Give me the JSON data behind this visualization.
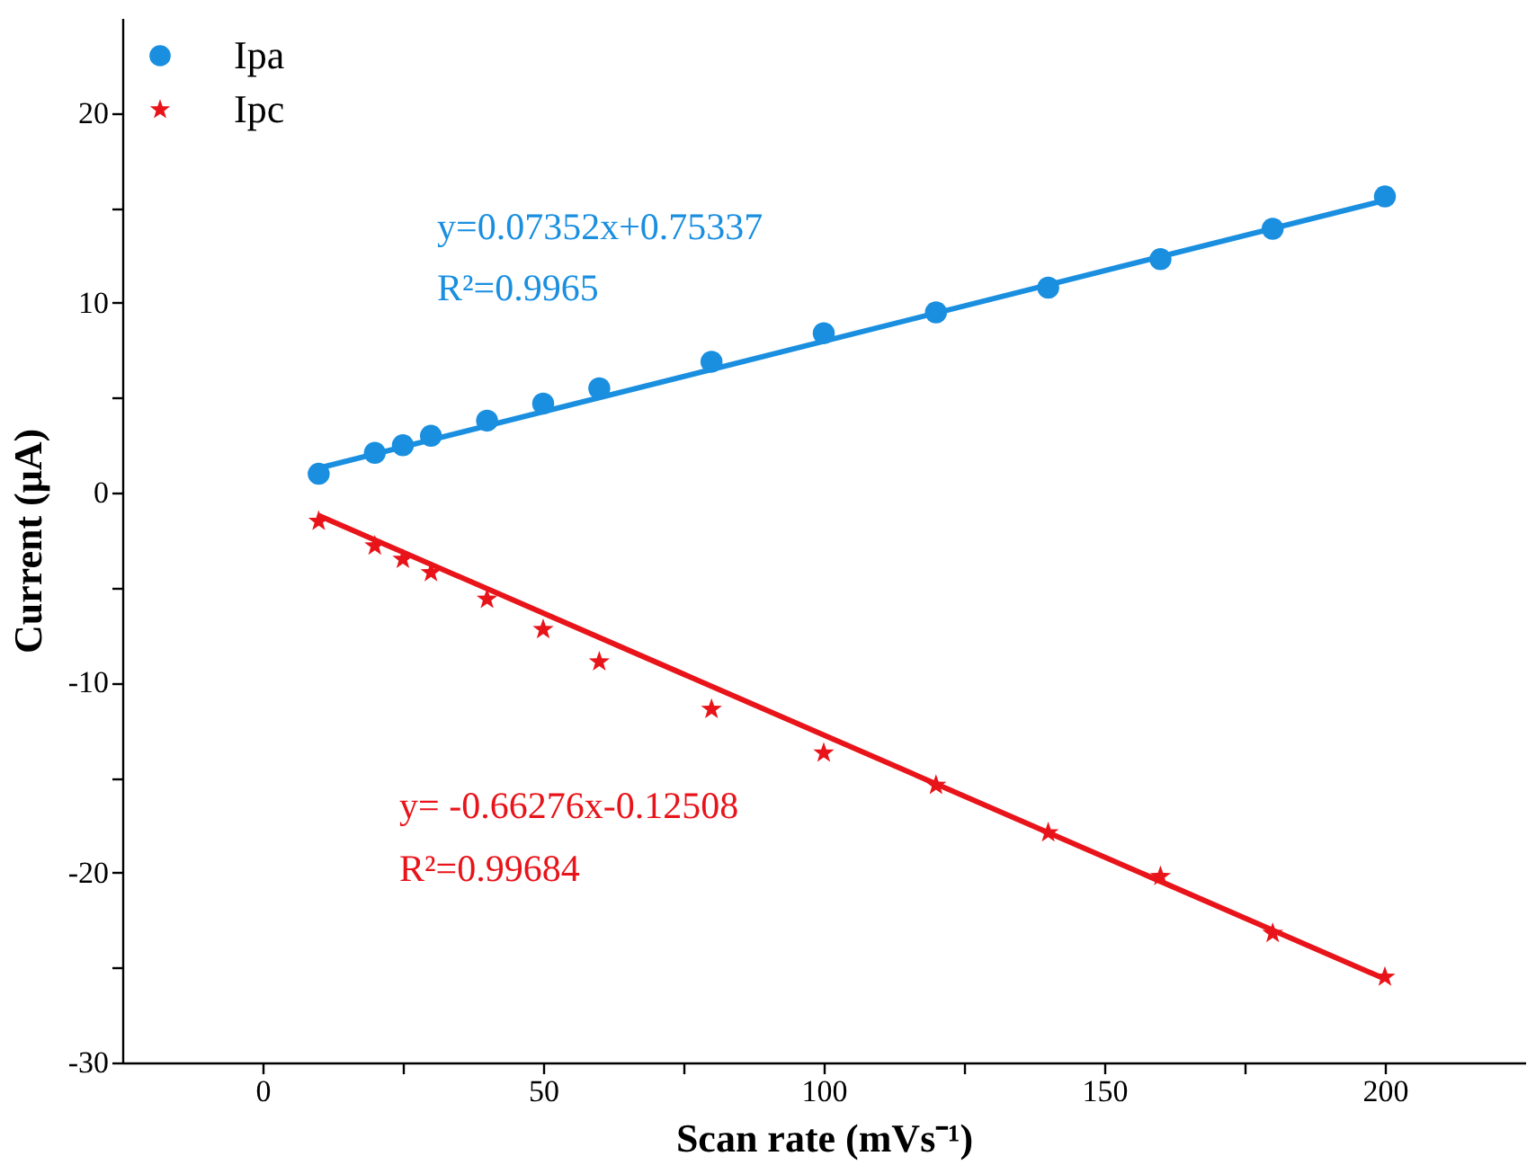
{
  "chart_data": {
    "type": "scatter",
    "xlabel": "Scan rate (mVs⁻¹)",
    "ylabel": "Current (μA)",
    "xlim": [
      -25,
      225
    ],
    "ylim": [
      -30,
      25
    ],
    "xticks": [
      0,
      50,
      100,
      150,
      200,
      {
        "value": 25,
        "label": null
      },
      {
        "value": 75,
        "label": null
      },
      {
        "value": 125,
        "label": null
      },
      {
        "value": 175,
        "label": null
      }
    ],
    "yticks": [
      -30,
      -20,
      -10,
      0,
      10,
      20,
      {
        "value": -25,
        "label": null
      },
      {
        "value": -15,
        "label": null
      },
      {
        "value": -5,
        "label": null
      },
      {
        "value": 5,
        "label": null
      },
      {
        "value": 15,
        "label": null
      }
    ],
    "grid": false,
    "legend": "top left",
    "series": [
      {
        "name": "Ipa",
        "marker": "circle",
        "color": "#1a8fe0",
        "x": [
          10,
          20,
          25,
          30,
          40,
          50,
          60,
          80,
          100,
          120,
          140,
          160,
          180,
          200
        ],
        "values": [
          1.0,
          2.1,
          2.5,
          3.0,
          3.8,
          4.7,
          5.5,
          6.9,
          8.4,
          9.5,
          10.8,
          12.3,
          13.9,
          15.6
        ]
      },
      {
        "name": "Ipc",
        "marker": "star",
        "color": "#e8141a",
        "x": [
          10,
          20,
          25,
          30,
          40,
          50,
          60,
          80,
          100,
          120,
          140,
          160,
          180,
          200
        ],
        "values": [
          -1.5,
          -2.8,
          -3.5,
          -4.2,
          -5.6,
          -7.2,
          -8.9,
          -11.4,
          -13.7,
          -15.4,
          -17.9,
          -20.2,
          -23.2,
          -25.5
        ]
      },
      {
        "type": "line",
        "color": "#1a8fe0",
        "x": [
          10,
          200
        ],
        "values": [
          1.3,
          15.4
        ]
      },
      {
        "type": "line",
        "color": "#e8141a",
        "x": [
          10,
          200
        ],
        "values": [
          -1.2,
          -25.6
        ]
      }
    ],
    "annotations": [
      "y=0.07352x+0.75337",
      "R²=0.9965",
      "y= -0.66276x-0.12508",
      "R²=0.99684"
    ]
  }
}
